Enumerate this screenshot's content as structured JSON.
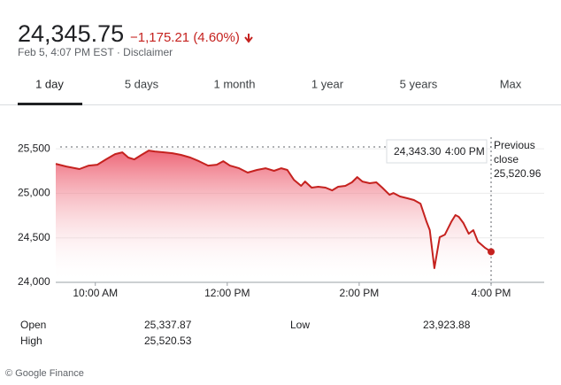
{
  "header": {
    "price": "24,345.75",
    "change": "−1,175.21 (4.60%)",
    "timestamp": "Feb 5, 4:07 PM EST · Disclaimer"
  },
  "tabs": [
    "1 day",
    "5 days",
    "1 month",
    "1 year",
    "5 years",
    "Max"
  ],
  "selected_tab": 0,
  "chart_data": {
    "type": "line",
    "color": "#c5221f",
    "x": [
      9.4,
      9.56,
      9.76,
      9.9,
      10.03,
      10.16,
      10.3,
      10.41,
      10.5,
      10.59,
      10.7,
      10.81,
      10.9,
      11.04,
      11.17,
      11.3,
      11.44,
      11.57,
      11.71,
      11.84,
      11.94,
      12.04,
      12.18,
      12.31,
      12.45,
      12.58,
      12.71,
      12.82,
      12.91,
      13.01,
      13.12,
      13.18,
      13.28,
      13.38,
      13.49,
      13.59,
      13.68,
      13.79,
      13.89,
      13.97,
      14.05,
      14.16,
      14.26,
      14.35,
      14.46,
      14.52,
      14.62,
      14.73,
      14.83,
      14.93,
      15.02,
      15.07,
      15.14,
      15.22,
      15.3,
      15.4,
      15.46,
      15.51,
      15.58,
      15.66,
      15.73,
      15.8,
      15.91,
      16.0
    ],
    "values": [
      25331,
      25301,
      25272,
      25311,
      25321,
      25381,
      25440,
      25460,
      25401,
      25381,
      25431,
      25480,
      25470,
      25460,
      25450,
      25431,
      25401,
      25361,
      25311,
      25321,
      25361,
      25311,
      25281,
      25232,
      25262,
      25281,
      25252,
      25281,
      25262,
      25152,
      25083,
      25132,
      25063,
      25073,
      25063,
      25033,
      25073,
      25083,
      25123,
      25182,
      25132,
      25113,
      25123,
      25063,
      24983,
      25003,
      24964,
      24944,
      24924,
      24884,
      24685,
      24586,
      24159,
      24507,
      24536,
      24685,
      24755,
      24735,
      24666,
      24546,
      24586,
      24457,
      24387,
      24343.3
    ],
    "xlim": [
      9.4,
      16.0
    ],
    "xticks": [
      {
        "value": 10,
        "label": "10:00 AM"
      },
      {
        "value": 12,
        "label": "12:00 PM"
      },
      {
        "value": 14,
        "label": "2:00 PM"
      },
      {
        "value": 16,
        "label": "4:00 PM"
      }
    ],
    "ylim": [
      24000,
      25630
    ],
    "yticks": [
      {
        "value": 24000,
        "label": "24,000"
      },
      {
        "value": 24500,
        "label": "24,500"
      },
      {
        "value": 25000,
        "label": "25,000"
      },
      {
        "value": 25500,
        "label": "25,500"
      }
    ],
    "grid": true,
    "reference_line": {
      "name": "Previous close",
      "value": 25520.96,
      "value_label": "25,520.96"
    },
    "tooltip": {
      "price": "24,343.30",
      "time": "4:00 PM"
    }
  },
  "stats": [
    [
      "Open",
      "25,337.87"
    ],
    [
      "High",
      "25,520.53"
    ],
    [
      "Low",
      "23,923.88"
    ]
  ],
  "footer": "© Google Finance"
}
